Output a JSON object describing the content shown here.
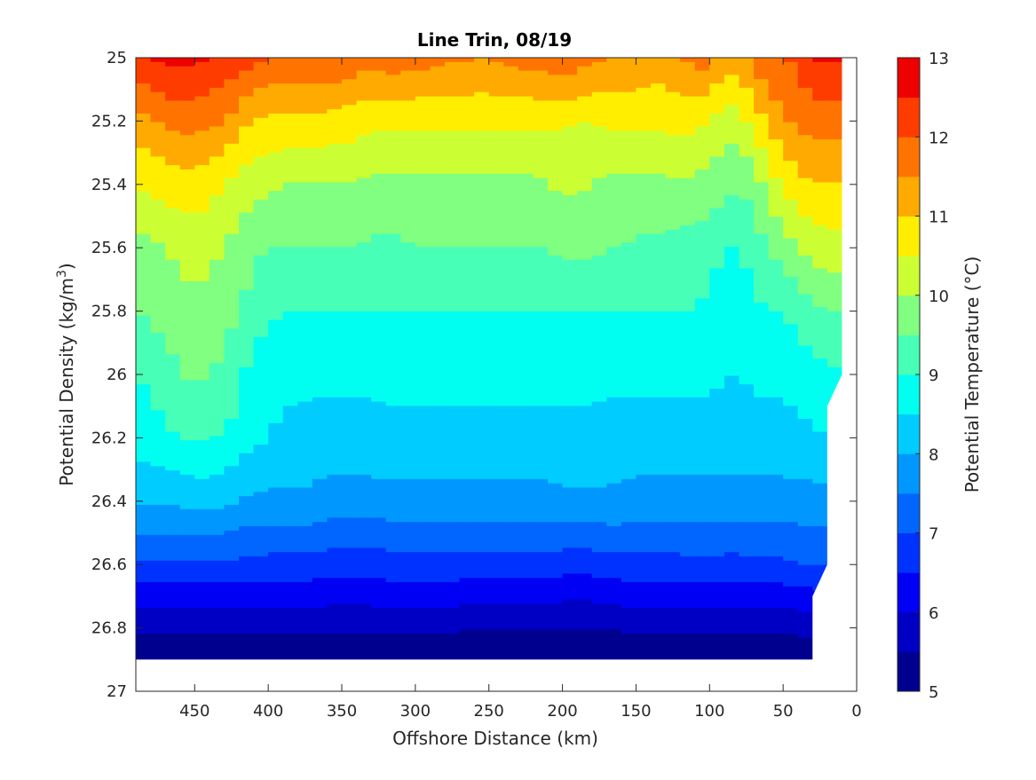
{
  "chart_data": {
    "type": "filled-contour",
    "title": "Line Trin, 08/19",
    "xlabel": "Offshore Distance (km)",
    "ylabel": "Potential Density (kg/m",
    "ylabel_sup": "3",
    "ylabel_close": ")",
    "colorbar_label": "Potential Temperature (°C)",
    "xlim": [
      490,
      0
    ],
    "ylim": [
      25,
      27
    ],
    "x_reversed": true,
    "y_reversed": true,
    "grid": false,
    "x_ticks": [
      450,
      400,
      350,
      300,
      250,
      200,
      150,
      100,
      50,
      0
    ],
    "x_tick_labels": [
      "450",
      "400",
      "350",
      "300",
      "250",
      "200",
      "150",
      "100",
      "50",
      "0"
    ],
    "y_ticks": [
      25,
      25.2,
      25.4,
      25.6,
      25.8,
      26,
      26.2,
      26.4,
      26.6,
      26.8,
      27
    ],
    "y_tick_labels": [
      "25",
      "25.2",
      "25.4",
      "25.6",
      "25.8",
      "26",
      "26.2",
      "26.4",
      "26.6",
      "26.8",
      "27"
    ],
    "colorbar_ticks": [
      5,
      6,
      7,
      8,
      9,
      10,
      11,
      12,
      13
    ],
    "colorbar_tick_labels": [
      "5",
      "6",
      "7",
      "8",
      "9",
      "10",
      "11",
      "12",
      "13"
    ],
    "levels": [
      5,
      5.5,
      6,
      6.5,
      7,
      7.5,
      8,
      8.5,
      9,
      9.5,
      10,
      10.5,
      11,
      11.5,
      12,
      12.5,
      13
    ],
    "level_colors": [
      "#00008f",
      "#0000c4",
      "#0000f4",
      "#0032ff",
      "#0066ff",
      "#0098ff",
      "#00ccff",
      "#00fff0",
      "#48ffb7",
      "#80ff80",
      "#ccff33",
      "#ffee00",
      "#ffaa00",
      "#ff7300",
      "#ff3c00",
      "#ee0000",
      "#b40000"
    ],
    "data_x": [
      490,
      480,
      470,
      460,
      450,
      440,
      430,
      420,
      410,
      400,
      390,
      380,
      370,
      360,
      350,
      340,
      330,
      320,
      310,
      300,
      290,
      280,
      270,
      260,
      250,
      240,
      230,
      220,
      210,
      200,
      190,
      180,
      170,
      160,
      150,
      140,
      130,
      120,
      110,
      100,
      90,
      80,
      70,
      60,
      50,
      40,
      30,
      20,
      10
    ],
    "boundary_x": [
      490,
      400,
      300,
      200,
      100,
      30,
      30,
      20,
      20,
      10
    ],
    "boundary_y": [
      26.9,
      26.9,
      26.9,
      26.9,
      26.9,
      26.9,
      26.7,
      26.6,
      26.1,
      26.0
    ],
    "isopycnal_temperatures": [
      {
        "density": 25.0,
        "temps": [
          12.4,
          12.5,
          12.6,
          12.7,
          12.6,
          12.5,
          12.4,
          12.3,
          12.1,
          12.0,
          11.9,
          11.9,
          12.0,
          12.0,
          11.9,
          11.8,
          11.7,
          11.8,
          11.8,
          11.7,
          11.7,
          11.6,
          11.6,
          11.5,
          11.5,
          11.6,
          11.7,
          11.7,
          11.8,
          11.9,
          11.8,
          11.6,
          11.5,
          11.5,
          11.4,
          11.3,
          11.3,
          11.5,
          11.6,
          11.8,
          11.2,
          11.3,
          11.6,
          12.0,
          12.0,
          12.1,
          12.5,
          12.6,
          12.5
        ]
      },
      {
        "density": 25.2,
        "temps": [
          11.3,
          11.4,
          11.6,
          11.7,
          11.7,
          11.6,
          11.5,
          11.2,
          11.0,
          10.9,
          10.9,
          10.9,
          10.9,
          10.8,
          10.8,
          10.7,
          10.6,
          10.6,
          10.6,
          10.6,
          10.6,
          10.6,
          10.6,
          10.6,
          10.6,
          10.6,
          10.6,
          10.6,
          10.6,
          10.6,
          10.5,
          10.5,
          10.6,
          10.6,
          10.6,
          10.6,
          10.6,
          10.7,
          10.6,
          10.5,
          10.2,
          10.3,
          10.7,
          11.1,
          11.4,
          11.6,
          11.7,
          11.7,
          11.7
        ]
      },
      {
        "density": 25.4,
        "temps": [
          10.5,
          10.6,
          10.7,
          10.8,
          10.8,
          10.7,
          10.5,
          10.3,
          10.2,
          10.1,
          10.0,
          10.0,
          10.0,
          10.0,
          10.0,
          10.0,
          9.9,
          9.9,
          9.9,
          9.9,
          9.9,
          9.9,
          9.9,
          9.9,
          9.9,
          9.9,
          9.9,
          9.9,
          10.0,
          10.1,
          10.1,
          10.0,
          9.9,
          9.9,
          9.9,
          9.9,
          9.9,
          9.9,
          9.9,
          9.8,
          9.7,
          9.5,
          9.8,
          10.2,
          10.6,
          10.8,
          11.0,
          11.0,
          11.0
        ]
      },
      {
        "density": 25.6,
        "temps": [
          9.8,
          9.9,
          10.0,
          10.1,
          10.2,
          10.1,
          10.0,
          9.8,
          9.6,
          9.5,
          9.5,
          9.5,
          9.5,
          9.5,
          9.5,
          9.5,
          9.4,
          9.4,
          9.4,
          9.5,
          9.5,
          9.5,
          9.5,
          9.5,
          9.5,
          9.5,
          9.5,
          9.5,
          9.5,
          9.6,
          9.6,
          9.6,
          9.5,
          9.5,
          9.4,
          9.4,
          9.4,
          9.3,
          9.3,
          9.2,
          9.0,
          9.0,
          9.2,
          9.5,
          9.7,
          10.0,
          10.2,
          10.3,
          10.3
        ]
      },
      {
        "density": 25.8,
        "temps": [
          9.5,
          9.6,
          9.7,
          9.8,
          9.9,
          9.8,
          9.7,
          9.5,
          9.3,
          9.1,
          9.0,
          9.0,
          9.0,
          9.0,
          9.0,
          9.0,
          9.0,
          9.0,
          9.0,
          9.0,
          9.0,
          9.0,
          9.0,
          9.0,
          9.0,
          9.0,
          9.0,
          9.0,
          9.0,
          9.0,
          9.0,
          9.0,
          9.0,
          9.0,
          9.0,
          9.0,
          9.0,
          9.0,
          9.0,
          8.9,
          8.7,
          8.7,
          8.9,
          9.0,
          9.0,
          9.2,
          9.4,
          9.5,
          9.5
        ]
      },
      {
        "density": 26.0,
        "temps": [
          9.0,
          9.1,
          9.3,
          9.5,
          9.6,
          9.5,
          9.4,
          9.1,
          8.8,
          8.7,
          8.6,
          8.6,
          8.6,
          8.6,
          8.6,
          8.6,
          8.6,
          8.6,
          8.6,
          8.6,
          8.6,
          8.6,
          8.6,
          8.6,
          8.6,
          8.6,
          8.6,
          8.6,
          8.6,
          8.6,
          8.6,
          8.6,
          8.6,
          8.6,
          8.6,
          8.6,
          8.6,
          8.6,
          8.6,
          8.6,
          8.5,
          8.5,
          8.6,
          8.6,
          8.6,
          8.7,
          8.8,
          8.9,
          9.0
        ]
      },
      {
        "density": 26.2,
        "temps": [
          8.7,
          8.8,
          8.9,
          9.0,
          9.1,
          9.0,
          9.0,
          8.8,
          8.6,
          8.5,
          8.4,
          8.4,
          8.3,
          8.3,
          8.3,
          8.3,
          8.3,
          8.4,
          8.4,
          8.4,
          8.4,
          8.4,
          8.4,
          8.4,
          8.4,
          8.4,
          8.4,
          8.4,
          8.4,
          8.4,
          8.4,
          8.4,
          8.3,
          8.3,
          8.3,
          8.3,
          8.3,
          8.3,
          8.3,
          8.3,
          8.3,
          8.2,
          8.3,
          8.3,
          8.3,
          8.4,
          8.4,
          8.5,
          8.5
        ]
      },
      {
        "density": 26.4,
        "temps": [
          8.1,
          8.1,
          8.1,
          8.1,
          8.2,
          8.2,
          8.1,
          8.0,
          7.9,
          7.9,
          7.9,
          7.9,
          7.9,
          7.8,
          7.8,
          7.8,
          7.8,
          7.8,
          7.8,
          7.8,
          7.8,
          7.8,
          7.8,
          7.8,
          7.8,
          7.8,
          7.8,
          7.8,
          7.8,
          7.9,
          7.9,
          7.9,
          7.9,
          7.9,
          7.8,
          7.8,
          7.8,
          7.8,
          7.8,
          7.8,
          7.8,
          7.8,
          7.8,
          7.8,
          7.8,
          7.8,
          7.8,
          7.8,
          7.8
        ]
      },
      {
        "density": 26.6,
        "temps": [
          6.9,
          6.9,
          6.9,
          6.9,
          6.9,
          6.9,
          6.9,
          6.9,
          6.9,
          6.8,
          6.8,
          6.8,
          6.8,
          6.7,
          6.7,
          6.7,
          6.7,
          6.8,
          6.8,
          6.8,
          6.8,
          6.8,
          6.8,
          6.8,
          6.8,
          6.8,
          6.8,
          6.8,
          6.8,
          6.7,
          6.7,
          6.7,
          6.8,
          6.8,
          6.8,
          6.8,
          6.8,
          6.8,
          6.9,
          6.9,
          6.8,
          6.8,
          6.9,
          6.9,
          6.9,
          7.0,
          7.0,
          7.1,
          7.1
        ]
      },
      {
        "density": 26.8,
        "temps": [
          5.6,
          5.6,
          5.6,
          5.6,
          5.6,
          5.6,
          5.6,
          5.6,
          5.6,
          5.6,
          5.6,
          5.6,
          5.6,
          5.6,
          5.6,
          5.6,
          5.6,
          5.6,
          5.6,
          5.6,
          5.6,
          5.6,
          5.6,
          5.5,
          5.5,
          5.5,
          5.5,
          5.5,
          5.5,
          5.5,
          5.5,
          5.5,
          5.5,
          5.6,
          5.6,
          5.6,
          5.6,
          5.6,
          5.6,
          5.6,
          5.6,
          5.6,
          5.6,
          5.6,
          5.6,
          5.6,
          5.7,
          5.7,
          5.7
        ]
      },
      {
        "density": 26.9,
        "temps": [
          5.1,
          5.1,
          5.1,
          5.1,
          5.1,
          5.1,
          5.1,
          5.1,
          5.1,
          5.1,
          5.1,
          5.1,
          5.1,
          5.1,
          5.1,
          5.1,
          5.1,
          5.1,
          5.1,
          5.1,
          5.1,
          5.1,
          5.1,
          5.1,
          5.1,
          5.1,
          5.1,
          5.1,
          5.1,
          5.1,
          5.1,
          5.1,
          5.1,
          5.1,
          5.1,
          5.1,
          5.1,
          5.1,
          5.1,
          5.1,
          5.1,
          5.1,
          5.1,
          5.1,
          5.1,
          5.1,
          5.1,
          5.2,
          5.2
        ]
      }
    ]
  }
}
